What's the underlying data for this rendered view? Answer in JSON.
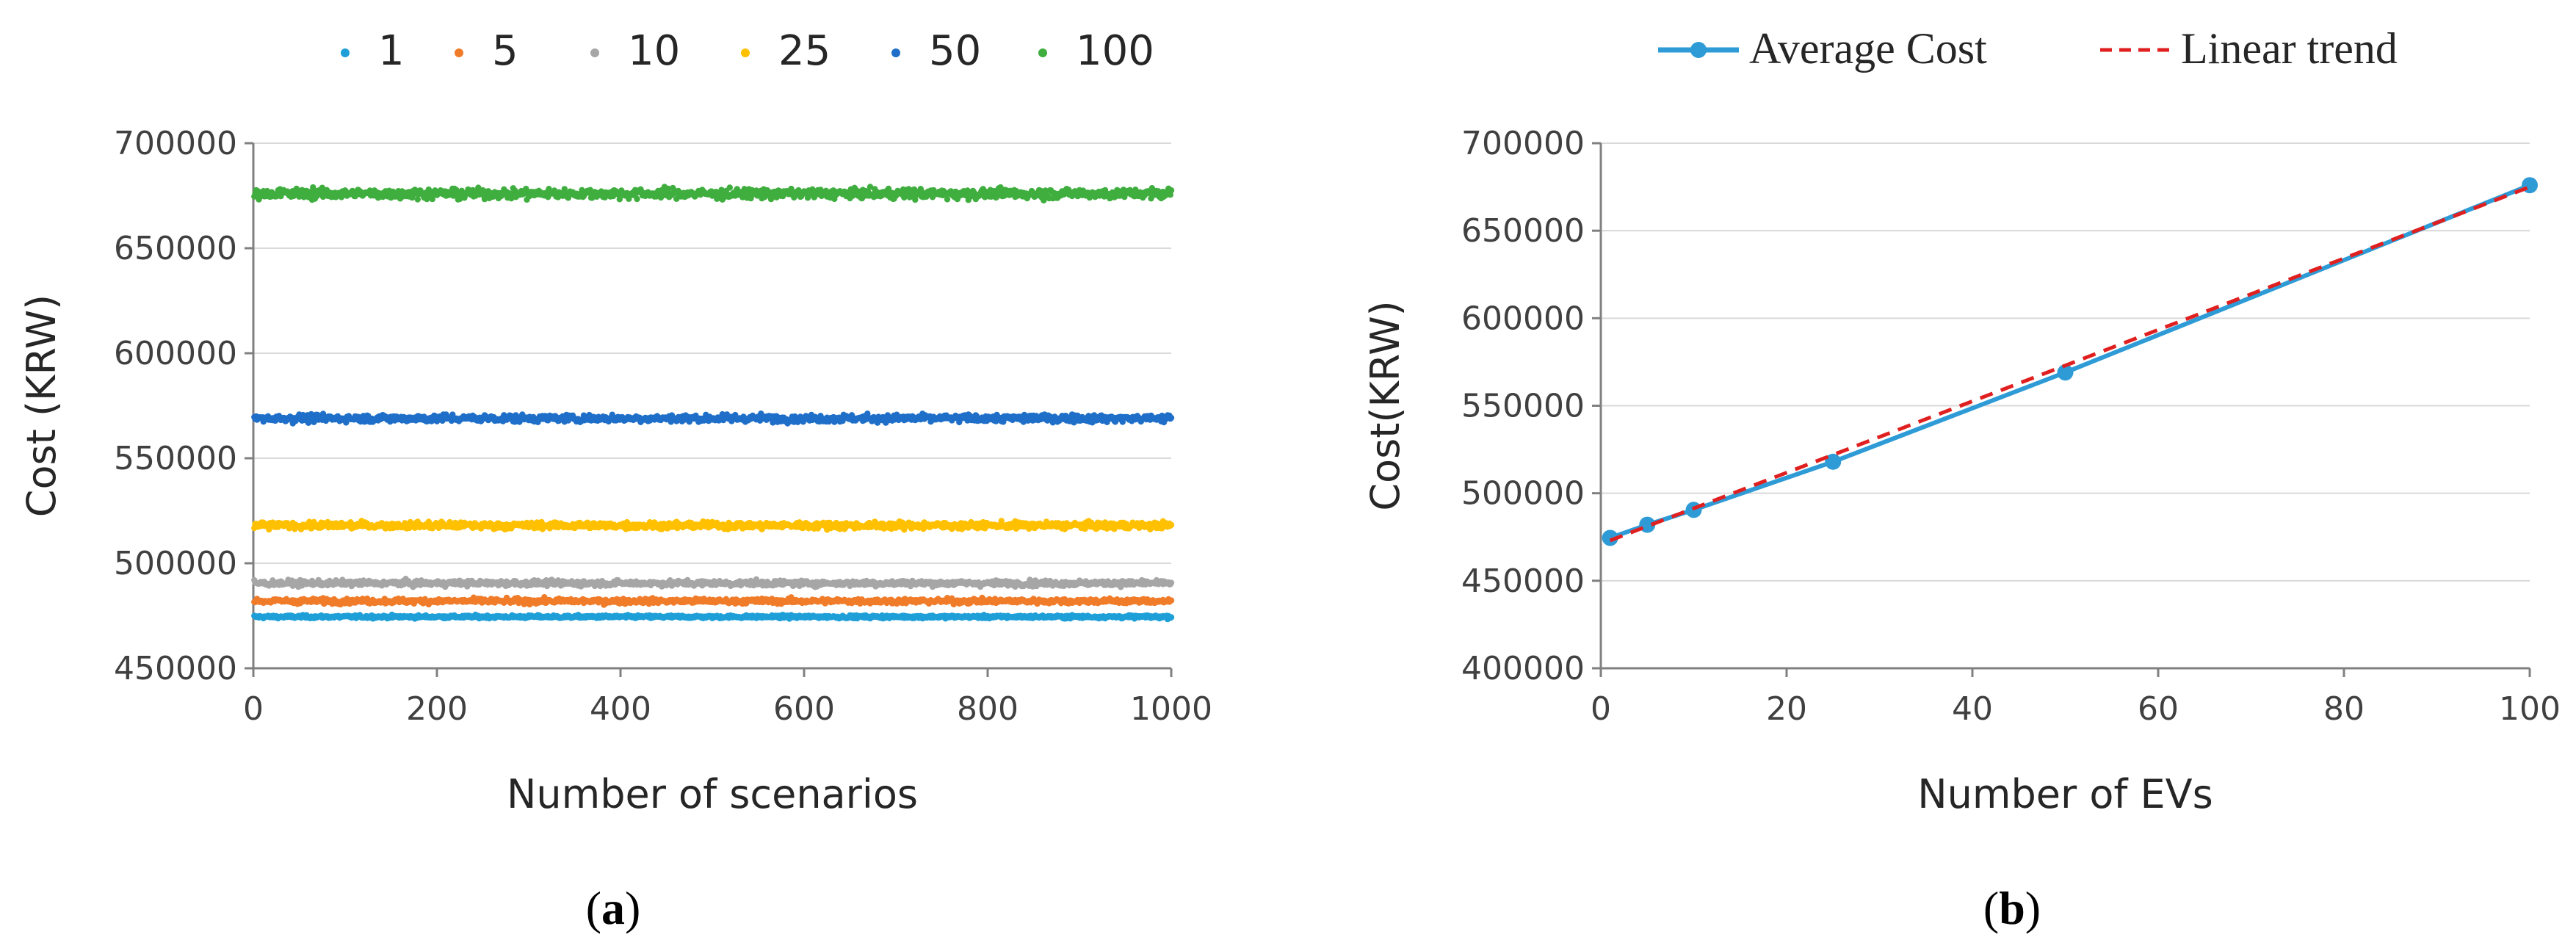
{
  "panels": [
    {
      "caption": "(a)",
      "caption_letter": "a",
      "chart_data": {
        "type": "scatter",
        "xlabel": "Number of scenarios",
        "ylabel": "Cost (KRW)",
        "xlim": [
          0,
          1000
        ],
        "ylim": [
          450000,
          700000
        ],
        "xticks": [
          0,
          200,
          400,
          600,
          800,
          1000
        ],
        "yticks": [
          450000,
          500000,
          550000,
          600000,
          650000,
          700000
        ],
        "grid": "horizontal",
        "legend_position": "top",
        "n_points_per_series": 1000,
        "series": [
          {
            "name": "1",
            "color": "#1E9FD8",
            "mean": 474500,
            "spread": 1200,
            "x_range": [
              1,
              1000
            ]
          },
          {
            "name": "5",
            "color": "#F07C2A",
            "mean": 482000,
            "spread": 2000,
            "x_range": [
              1,
              1000
            ]
          },
          {
            "name": "10",
            "color": "#A6A6A6",
            "mean": 490500,
            "spread": 2200,
            "x_range": [
              1,
              1000
            ]
          },
          {
            "name": "25",
            "color": "#FFC000",
            "mean": 518000,
            "spread": 2700,
            "x_range": [
              1,
              1000
            ]
          },
          {
            "name": "50",
            "color": "#1F6FC9",
            "mean": 569000,
            "spread": 3000,
            "x_range": [
              1,
              1000
            ]
          },
          {
            "name": "100",
            "color": "#3FAE3F",
            "mean": 676000,
            "spread": 4000,
            "x_range": [
              1,
              1000
            ]
          }
        ]
      }
    },
    {
      "caption": "(b)",
      "caption_letter": "b",
      "chart_data": {
        "type": "line",
        "xlabel": "Number of EVs",
        "ylabel": "Cost(KRW)",
        "xlim": [
          0,
          100
        ],
        "ylim": [
          400000,
          700000
        ],
        "xticks": [
          0,
          20,
          40,
          60,
          80,
          100
        ],
        "yticks": [
          400000,
          450000,
          500000,
          550000,
          600000,
          650000,
          700000
        ],
        "grid": "horizontal",
        "legend_position": "top",
        "series": [
          {
            "name": "Average Cost",
            "color": "#2E9BD6",
            "style": "solid-markers",
            "x": [
              1,
              5,
              10,
              25,
              50,
              100
            ],
            "y": [
              474500,
              482000,
              490500,
              518000,
              569000,
              676000
            ]
          },
          {
            "name": "Linear trend",
            "color": "#E02020",
            "style": "dashed",
            "x": [
              1,
              100
            ],
            "y": [
              473000,
              675000
            ]
          }
        ]
      }
    }
  ]
}
